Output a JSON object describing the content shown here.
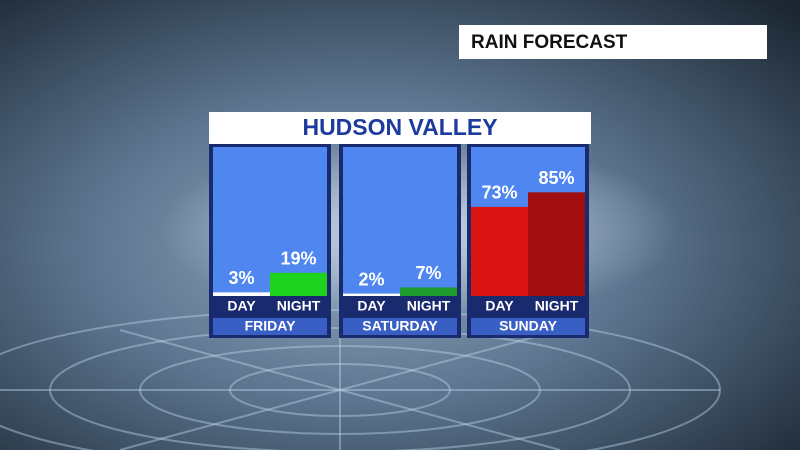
{
  "chart_data": {
    "type": "bar",
    "label": "RAIN FORECAST",
    "title": "HUDSON VALLEY",
    "groups": [
      {
        "name": "FRIDAY",
        "categories": [
          "DAY",
          "NIGHT"
        ],
        "values": [
          3,
          19
        ],
        "value_labels": [
          "3%",
          "19%"
        ],
        "colors": [
          "#ffffff",
          "#1ed21e"
        ]
      },
      {
        "name": "SATURDAY",
        "categories": [
          "DAY",
          "NIGHT"
        ],
        "values": [
          2,
          7
        ],
        "value_labels": [
          "2%",
          "7%"
        ],
        "colors": [
          "#ffffff",
          "#1f9a2c"
        ]
      },
      {
        "name": "SUNDAY",
        "categories": [
          "DAY",
          "NIGHT"
        ],
        "values": [
          73,
          85
        ],
        "value_labels": [
          "73%",
          "85%"
        ],
        "colors": [
          "#dc1414",
          "#a00e10"
        ]
      }
    ]
  }
}
